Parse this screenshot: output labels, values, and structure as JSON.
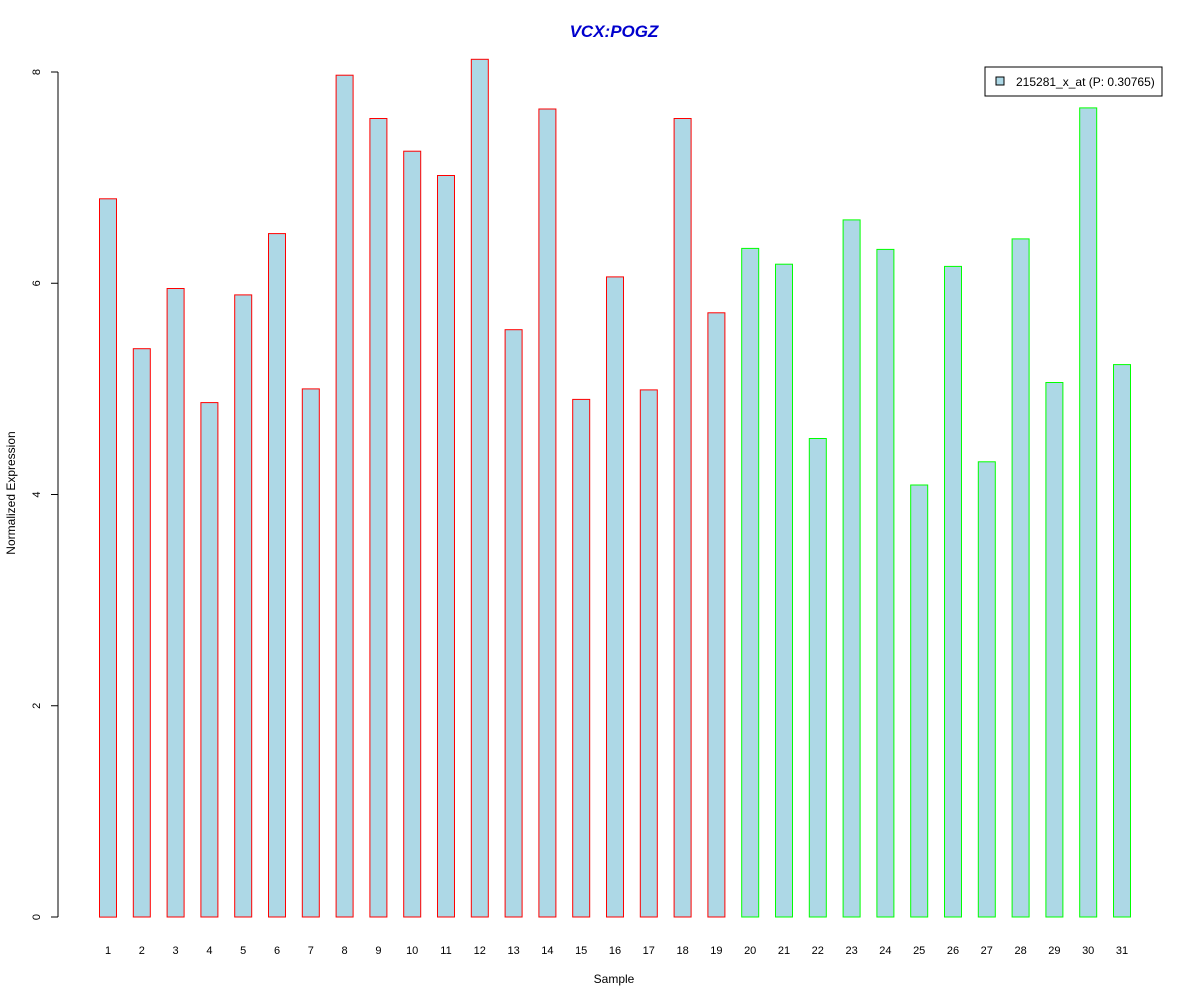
{
  "chart_data": {
    "type": "bar",
    "title": "VCX:POGZ",
    "xlabel": "Sample",
    "ylabel": "Normalized Expression",
    "categories": [
      "1",
      "2",
      "3",
      "4",
      "5",
      "6",
      "7",
      "8",
      "9",
      "10",
      "11",
      "12",
      "13",
      "14",
      "15",
      "16",
      "17",
      "18",
      "19",
      "20",
      "21",
      "22",
      "23",
      "24",
      "25",
      "26",
      "27",
      "28",
      "29",
      "30",
      "31"
    ],
    "series": [
      {
        "name": "215281_x_at (P: 0.30765)",
        "values": [
          6.8,
          5.38,
          5.95,
          4.87,
          5.89,
          6.47,
          5.0,
          7.97,
          7.56,
          7.25,
          7.02,
          8.12,
          5.56,
          7.65,
          4.9,
          6.06,
          4.99,
          7.56,
          5.72,
          6.33,
          6.18,
          4.53,
          6.6,
          6.32,
          4.09,
          6.16,
          4.31,
          6.42,
          5.06,
          7.66,
          5.23
        ]
      }
    ],
    "groups": [
      1,
      1,
      1,
      1,
      1,
      1,
      1,
      1,
      1,
      1,
      1,
      1,
      1,
      1,
      1,
      1,
      1,
      1,
      1,
      2,
      2,
      2,
      2,
      2,
      2,
      2,
      2,
      2,
      2,
      2,
      2
    ],
    "yticks": [
      0,
      2,
      4,
      6,
      8
    ],
    "ylim": [
      0,
      8.12
    ],
    "legend_position": "top-right",
    "grid": false,
    "colors": {
      "bar_fill": "#add8e6",
      "group1_border": "#ff0000",
      "group2_border": "#00ff00",
      "title": "#0000cd"
    }
  }
}
